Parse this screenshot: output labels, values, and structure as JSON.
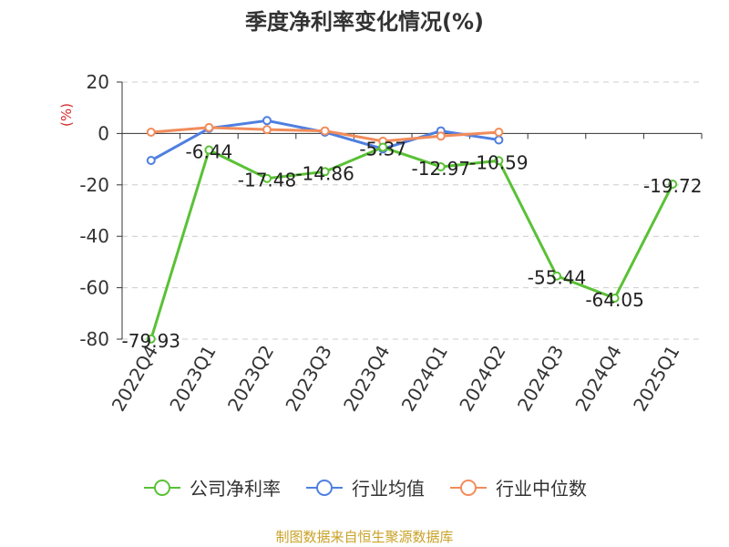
{
  "chart_data": {
    "type": "line",
    "title": "季度净利率变化情况(%)",
    "ylabel": "(%)",
    "xlabel": "",
    "categories": [
      "2022Q4",
      "2023Q1",
      "2023Q2",
      "2023Q3",
      "2023Q4",
      "2024Q1",
      "2024Q2",
      "2024Q3",
      "2024Q4",
      "2025Q1"
    ],
    "ylim": [
      -80,
      20
    ],
    "yticks": [
      20,
      0,
      -20,
      -40,
      -60,
      -80
    ],
    "grid": true,
    "legend_position": "bottom",
    "series": [
      {
        "name": "公司净利率",
        "color": "#5ac136",
        "values": [
          -79.93,
          -6.44,
          -17.48,
          -14.86,
          -5.37,
          -12.97,
          -10.59,
          -55.44,
          -64.05,
          -19.72
        ],
        "labels": [
          "-79.93",
          "-6.44",
          "-17.48",
          "-14.86",
          "-5.37",
          "-12.97",
          "-10.59",
          "-55.44",
          "-64.05",
          "-19.72"
        ]
      },
      {
        "name": "行业均值",
        "color": "#4f7fe0",
        "values": [
          -10.5,
          2.0,
          5.0,
          0.5,
          -6.0,
          1.0,
          -2.5,
          null,
          null,
          null
        ]
      },
      {
        "name": "行业中位数",
        "color": "#f28c5b",
        "values": [
          0.5,
          2.3,
          1.5,
          1.0,
          -3.0,
          -1.0,
          0.5,
          null,
          null,
          null
        ]
      }
    ]
  },
  "footer": {
    "source": "制图数据来自恒生聚源数据库"
  }
}
